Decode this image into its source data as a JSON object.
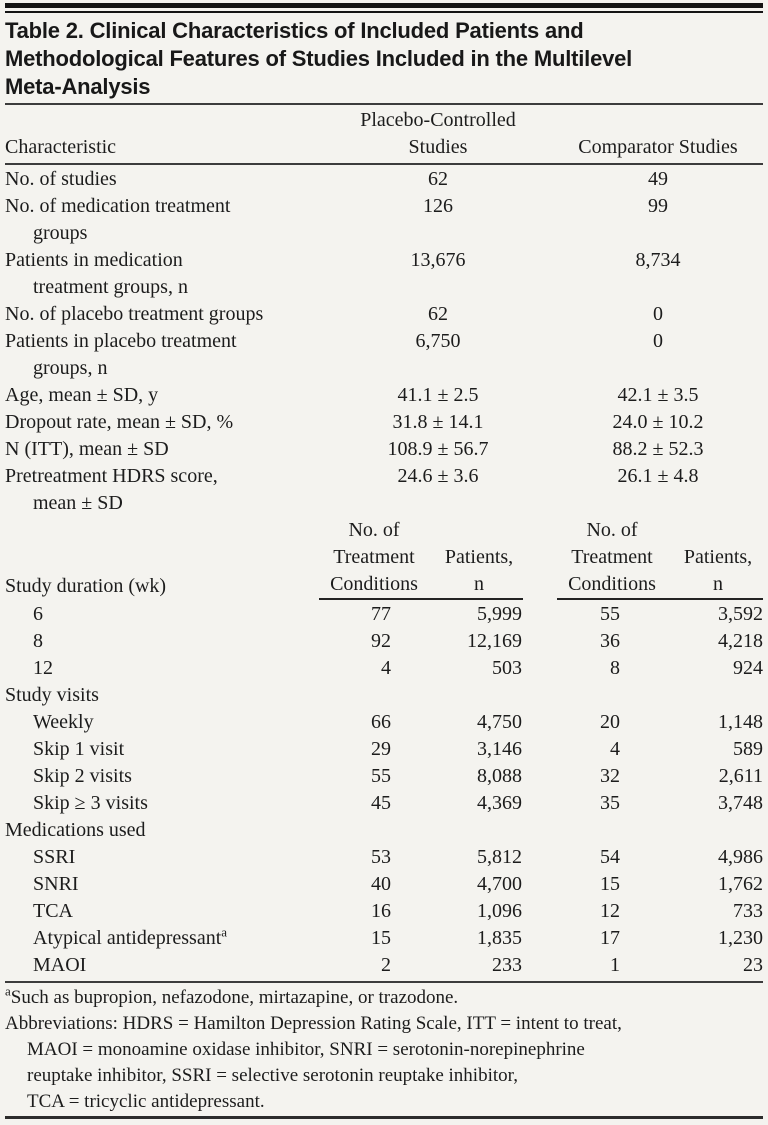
{
  "title_lines": [
    "Table 2. Clinical Characteristics of Included Patients and",
    "Methodological Features of Studies Included in the Multilevel",
    "Meta-Analysis"
  ],
  "header": {
    "characteristic": "Characteristic",
    "placebo_line1": "Placebo-Controlled",
    "placebo_line2": "Studies",
    "comparator": "Comparator Studies"
  },
  "characteristics_rows": [
    {
      "label": "No. of studies",
      "pc": "62",
      "cs": "49"
    },
    {
      "label": "No. of medication treatment",
      "cont": "groups",
      "pc": "126",
      "cs": "99"
    },
    {
      "label": "Patients in medication",
      "cont": "treatment groups, n",
      "pc": "13,676",
      "cs": "8,734"
    },
    {
      "label": "No. of placebo treatment groups",
      "pc": "62",
      "cs": "0"
    },
    {
      "label": "Patients in placebo treatment",
      "cont": "groups, n",
      "pc": "6,750",
      "cs": "0"
    },
    {
      "label": "Age, mean ± SD, y",
      "pc": "41.1 ± 2.5",
      "cs": "42.1 ± 3.5"
    },
    {
      "label": "Dropout rate, mean ± SD, %",
      "pc": "31.8 ± 14.1",
      "cs": "24.0 ± 10.2"
    },
    {
      "label": "N (ITT), mean ± SD",
      "pc": "108.9 ± 56.7",
      "cs": "88.2 ± 52.3"
    },
    {
      "label": "Pretreatment HDRS score,",
      "cont": "mean ± SD",
      "pc": "24.6 ± 3.6",
      "cs": "26.1 ± 4.8"
    }
  ],
  "subheader": {
    "duration_label": "Study duration (wk)",
    "no_of": "No. of",
    "treatment": "Treatment",
    "conditions": "Conditions",
    "patients": "Patients,",
    "n": "n"
  },
  "counts_rows": [
    {
      "label": "6",
      "indent": true,
      "v": [
        "77",
        "5,999",
        "55",
        "3,592"
      ]
    },
    {
      "label": "8",
      "indent": true,
      "v": [
        "92",
        "12,169",
        "36",
        "4,218"
      ]
    },
    {
      "label": "12",
      "indent": true,
      "v": [
        "4",
        "503",
        "8",
        "924"
      ]
    },
    {
      "label": "Study visits",
      "section": true
    },
    {
      "label": "Weekly",
      "indent": true,
      "v": [
        "66",
        "4,750",
        "20",
        "1,148"
      ]
    },
    {
      "label": "Skip 1 visit",
      "indent": true,
      "v": [
        "29",
        "3,146",
        "4",
        "589"
      ]
    },
    {
      "label": "Skip 2 visits",
      "indent": true,
      "v": [
        "55",
        "8,088",
        "32",
        "2,611"
      ]
    },
    {
      "label": "Skip ≥ 3 visits",
      "indent": true,
      "v": [
        "45",
        "4,369",
        "35",
        "3,748"
      ]
    },
    {
      "label": "Medications used",
      "section": true
    },
    {
      "label": "SSRI",
      "indent": true,
      "v": [
        "53",
        "5,812",
        "54",
        "4,986"
      ]
    },
    {
      "label": "SNRI",
      "indent": true,
      "v": [
        "40",
        "4,700",
        "15",
        "1,762"
      ]
    },
    {
      "label": "TCA",
      "indent": true,
      "v": [
        "16",
        "1,096",
        "12",
        "733"
      ]
    },
    {
      "label": "Atypical antidepressant",
      "sup": "a",
      "indent": true,
      "v": [
        "15",
        "1,835",
        "17",
        "1,230"
      ]
    },
    {
      "label": "MAOI",
      "indent": true,
      "v": [
        "2",
        "233",
        "1",
        "23"
      ]
    }
  ],
  "footnotes": {
    "a_sup": "a",
    "a_text": "Such as bupropion, nefazodone, mirtazapine, or trazodone.",
    "abbrev_lines": [
      "Abbreviations: HDRS = Hamilton Depression Rating Scale, ITT = intent to treat,",
      "MAOI = monoamine oxidase inhibitor, SNRI = serotonin-norepinephrine",
      "reuptake inhibitor, SSRI = selective serotonin reuptake inhibitor,",
      "TCA = tricyclic antidepressant."
    ]
  }
}
